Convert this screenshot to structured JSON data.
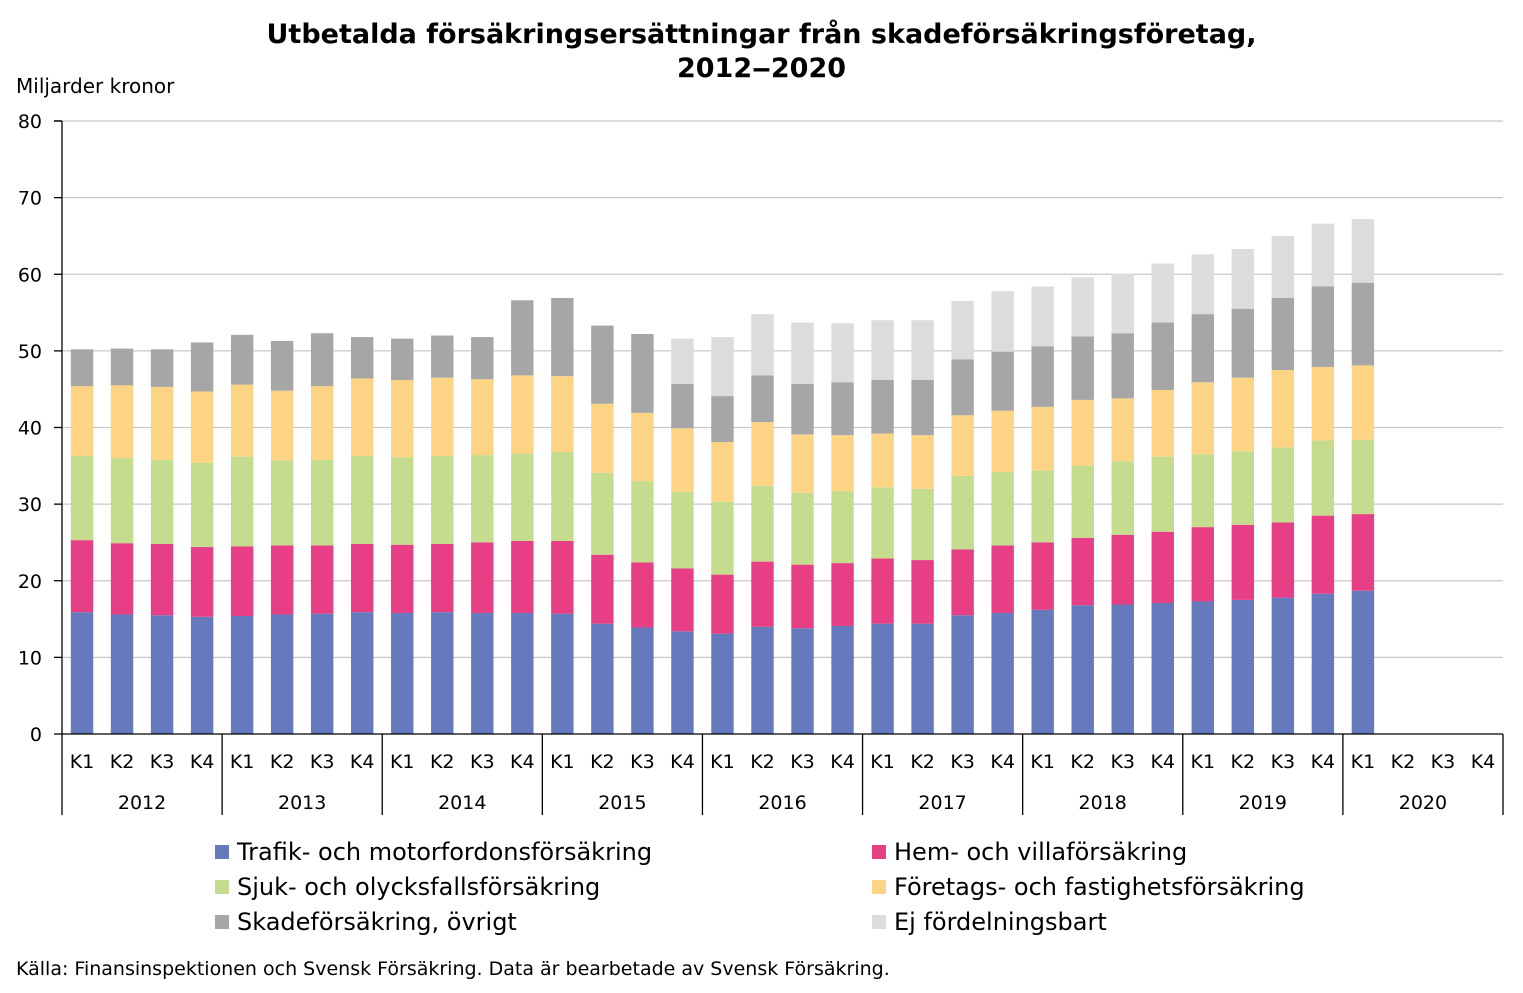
{
  "chart_data": {
    "type": "bar",
    "stacked": true,
    "title_line1": "Utbetalda försäkringsersättningar från skadeförsäkringsföretag,",
    "title_line2": "2012‒2020",
    "ylabel": "Miljarder kronor",
    "ylim": [
      0,
      80
    ],
    "yticks": [
      0,
      10,
      20,
      30,
      40,
      50,
      60,
      70,
      80
    ],
    "grid": true,
    "legend_position": "bottom",
    "years": [
      "2012",
      "2013",
      "2014",
      "2015",
      "2016",
      "2017",
      "2018",
      "2019",
      "2020"
    ],
    "quarters": [
      "K1",
      "K2",
      "K3",
      "K4"
    ],
    "series": [
      {
        "name": "Trafik- och motorfordonsförsäkring",
        "color": "#6779bd",
        "values": [
          15.9,
          15.6,
          15.5,
          15.3,
          15.4,
          15.6,
          15.7,
          15.9,
          15.8,
          15.9,
          15.8,
          15.8,
          15.7,
          14.4,
          13.9,
          13.4,
          13.1,
          14.0,
          13.8,
          14.1,
          14.4,
          14.4,
          15.5,
          15.8,
          16.2,
          16.8,
          16.9,
          17.1,
          17.3,
          17.5,
          17.8,
          18.3,
          18.7,
          null,
          null,
          null
        ]
      },
      {
        "name": "Hem- och villaförsäkring",
        "color": "#e73f85",
        "values": [
          9.4,
          9.3,
          9.3,
          9.1,
          9.1,
          9.0,
          8.9,
          8.9,
          8.9,
          8.9,
          9.2,
          9.4,
          9.5,
          9.0,
          8.5,
          8.2,
          7.7,
          8.5,
          8.3,
          8.2,
          8.5,
          8.3,
          8.6,
          8.8,
          8.8,
          8.8,
          9.1,
          9.3,
          9.7,
          9.8,
          9.8,
          10.2,
          10.0,
          null,
          null,
          null
        ]
      },
      {
        "name": "Sjuk- och olycksfallsförsäkring",
        "color": "#c5dc8e",
        "values": [
          11.0,
          11.1,
          11.0,
          11.0,
          11.7,
          11.1,
          11.2,
          11.5,
          11.4,
          11.5,
          11.4,
          11.4,
          11.6,
          10.7,
          10.6,
          10.0,
          9.5,
          9.9,
          9.4,
          9.4,
          9.3,
          9.3,
          9.6,
          9.6,
          9.4,
          9.4,
          9.6,
          9.8,
          9.5,
          9.6,
          9.8,
          9.8,
          9.7,
          null,
          null,
          null
        ]
      },
      {
        "name": "Företags- och fastighetsförsäkring",
        "color": "#fdd484",
        "values": [
          9.1,
          9.5,
          9.5,
          9.3,
          9.4,
          9.1,
          9.6,
          10.1,
          10.1,
          10.2,
          9.9,
          10.2,
          9.9,
          9.0,
          8.9,
          8.3,
          7.8,
          8.3,
          7.6,
          7.3,
          7.0,
          7.0,
          7.9,
          8.0,
          8.3,
          8.6,
          8.2,
          8.7,
          9.4,
          9.6,
          10.1,
          9.6,
          9.7,
          null,
          null,
          null
        ]
      },
      {
        "name": "Skadeförsäkring, övrigt",
        "color": "#a6a6a6",
        "values": [
          4.8,
          4.8,
          4.9,
          6.4,
          6.5,
          6.5,
          6.9,
          5.4,
          5.4,
          5.5,
          5.5,
          9.8,
          10.2,
          10.2,
          10.3,
          5.8,
          6.0,
          6.1,
          6.6,
          6.9,
          7.0,
          7.2,
          7.3,
          7.7,
          7.9,
          8.3,
          8.5,
          8.8,
          8.9,
          9.0,
          9.4,
          10.5,
          10.8,
          null,
          null,
          null
        ]
      },
      {
        "name": "Ej fördelningsbart",
        "color": "#dcdcdc",
        "values": [
          0,
          0,
          0,
          0,
          0,
          0,
          0,
          0,
          0,
          0,
          0,
          0,
          0,
          0,
          0,
          5.9,
          7.7,
          8.0,
          8.0,
          7.7,
          7.8,
          7.8,
          7.6,
          7.9,
          7.8,
          7.7,
          7.8,
          7.7,
          7.8,
          7.8,
          8.1,
          8.2,
          8.3,
          null,
          null,
          null
        ]
      }
    ]
  },
  "source": "Källa: Finansinspektionen och Svensk Försäkring. Data är bearbetade av Svensk Försäkring."
}
